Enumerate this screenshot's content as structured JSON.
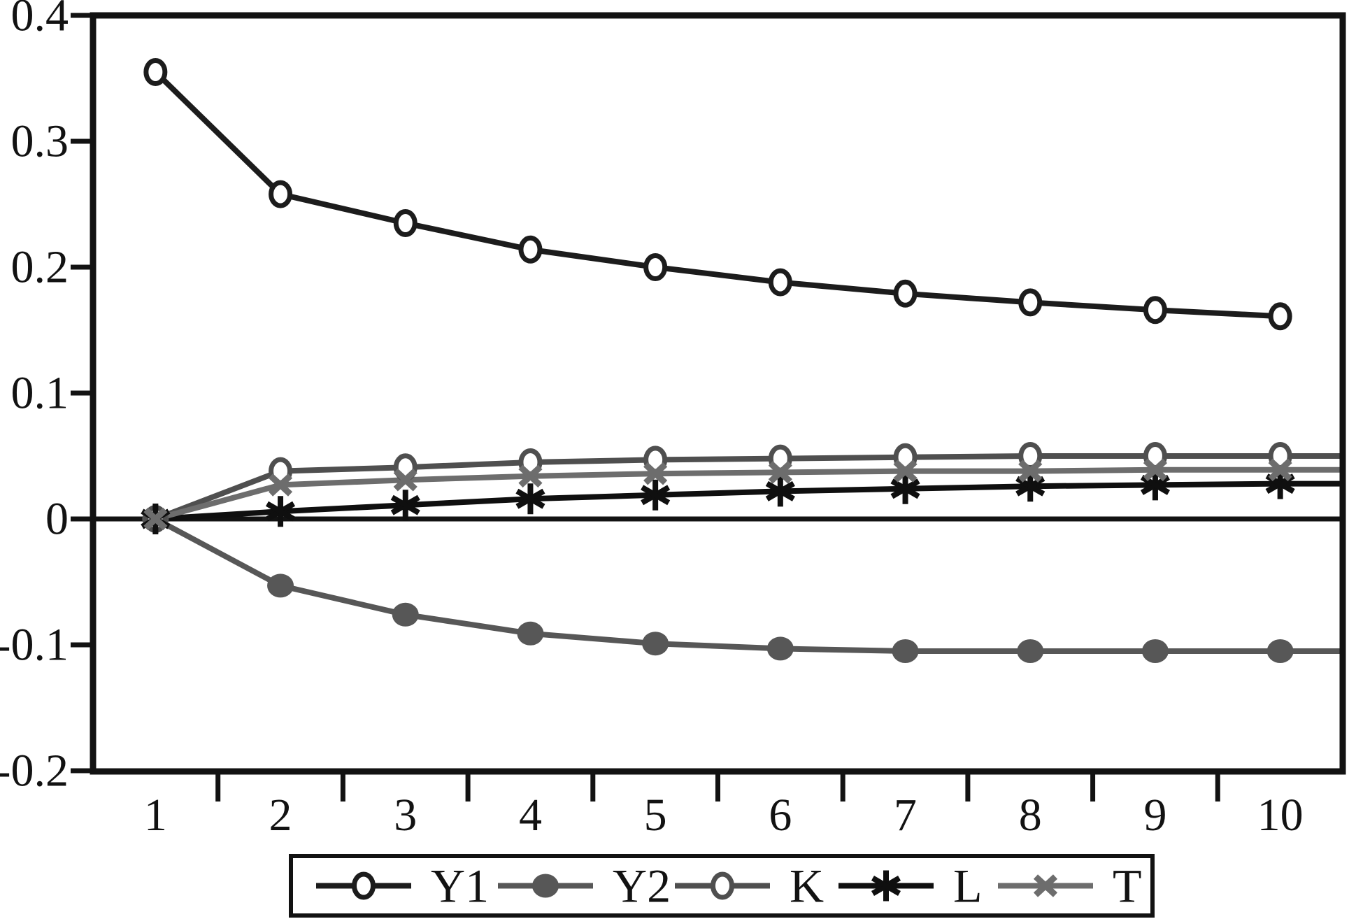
{
  "figure": {
    "background": "#ffffff",
    "axis_color": "#121212"
  },
  "chart_data": {
    "type": "line",
    "title": "",
    "xlabel": "",
    "ylabel": "",
    "x": [
      1,
      2,
      3,
      4,
      5,
      6,
      7,
      8,
      9,
      10
    ],
    "x_tick_labels": [
      "1",
      "2",
      "3",
      "4",
      "5",
      "6",
      "7",
      "8",
      "9",
      "10"
    ],
    "y_ticks": [
      0.4,
      0.3,
      0.2,
      0.1,
      0,
      -0.1,
      -0.2
    ],
    "y_tick_labels": [
      "0.4",
      "0.3",
      "0.2",
      "0.1",
      "0",
      "-0.1",
      "-0.2"
    ],
    "ylim": [
      -0.2,
      0.4
    ],
    "xlim_categories": [
      0.5,
      10.5
    ],
    "grid": false,
    "zero_line": true,
    "legend_position": "bottom",
    "legend_boxed": true,
    "series": [
      {
        "name": "Y1",
        "marker": "circle-open",
        "color": "#1c1c1c",
        "values": [
          0.355,
          0.258,
          0.235,
          0.214,
          0.2,
          0.188,
          0.179,
          0.172,
          0.166,
          0.161
        ],
        "extend_right": false
      },
      {
        "name": "Y2",
        "marker": "circle-filled",
        "color": "#575757",
        "values": [
          0.0,
          -0.053,
          -0.076,
          -0.091,
          -0.099,
          -0.103,
          -0.105,
          -0.105,
          -0.105,
          -0.105
        ],
        "extend_right": true
      },
      {
        "name": "K",
        "marker": "circle-open",
        "color": "#4f4f4f",
        "values": [
          0.0,
          0.038,
          0.041,
          0.045,
          0.047,
          0.048,
          0.049,
          0.05,
          0.05,
          0.05
        ],
        "extend_right": true
      },
      {
        "name": "L",
        "marker": "asterisk",
        "color": "#0f0f0f",
        "values": [
          0.0,
          0.006,
          0.011,
          0.016,
          0.019,
          0.022,
          0.024,
          0.026,
          0.027,
          0.028
        ],
        "extend_right": true
      },
      {
        "name": "T",
        "marker": "x-cross",
        "color": "#6d6d6d",
        "values": [
          0.0,
          0.027,
          0.031,
          0.034,
          0.036,
          0.037,
          0.038,
          0.038,
          0.039,
          0.039
        ],
        "extend_right": true
      }
    ]
  }
}
